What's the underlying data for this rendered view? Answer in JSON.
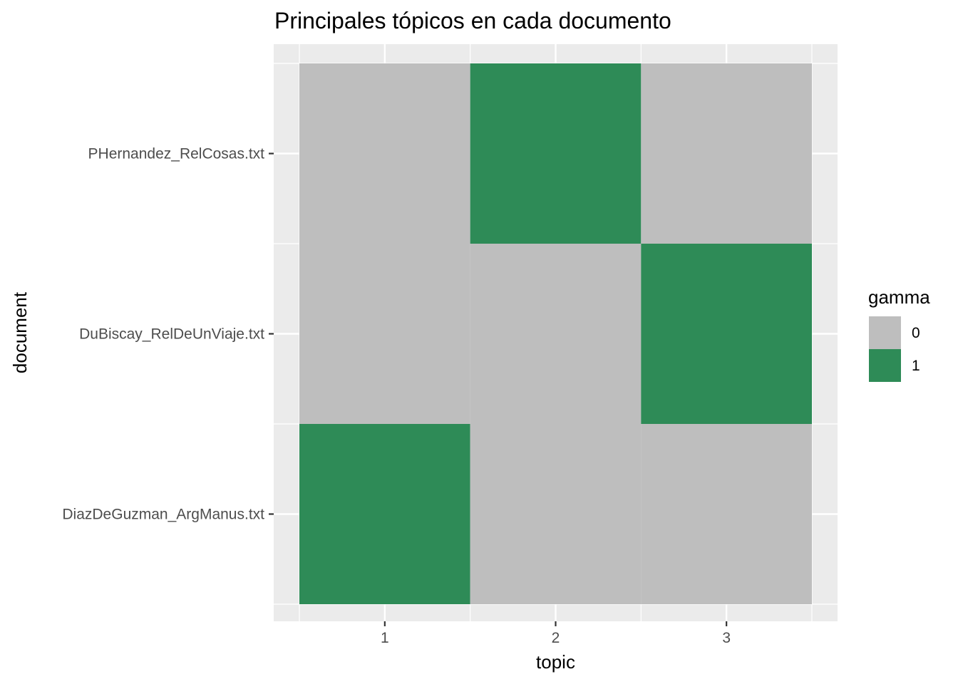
{
  "chart_data": {
    "type": "heatmap",
    "title": "Principales tópicos en cada documento",
    "xlabel": "topic",
    "ylabel": "document",
    "x_categories": [
      "1",
      "2",
      "3"
    ],
    "y_categories": [
      "DiazDeGuzman_ArgManus.txt",
      "DuBiscay_RelDeUnViaje.txt",
      "PHernandez_RelCosas.txt"
    ],
    "cells": [
      {
        "x": "1",
        "y": "PHernandez_RelCosas.txt",
        "gamma": "0"
      },
      {
        "x": "2",
        "y": "PHernandez_RelCosas.txt",
        "gamma": "1"
      },
      {
        "x": "3",
        "y": "PHernandez_RelCosas.txt",
        "gamma": "0"
      },
      {
        "x": "1",
        "y": "DuBiscay_RelDeUnViaje.txt",
        "gamma": "0"
      },
      {
        "x": "2",
        "y": "DuBiscay_RelDeUnViaje.txt",
        "gamma": "0"
      },
      {
        "x": "3",
        "y": "DuBiscay_RelDeUnViaje.txt",
        "gamma": "1"
      },
      {
        "x": "1",
        "y": "DiazDeGuzman_ArgManus.txt",
        "gamma": "1"
      },
      {
        "x": "2",
        "y": "DiazDeGuzman_ArgManus.txt",
        "gamma": "0"
      },
      {
        "x": "3",
        "y": "DiazDeGuzman_ArgManus.txt",
        "gamma": "0"
      }
    ],
    "legend": {
      "title": "gamma",
      "placement": "right",
      "entries": [
        {
          "label": "0",
          "color": "#bebebe"
        },
        {
          "label": "1",
          "color": "#2e8b57"
        }
      ]
    },
    "grid": true,
    "colors": {
      "panel_background": "#ebebeb",
      "grid": "#ffffff",
      "tick": "#333333"
    }
  }
}
